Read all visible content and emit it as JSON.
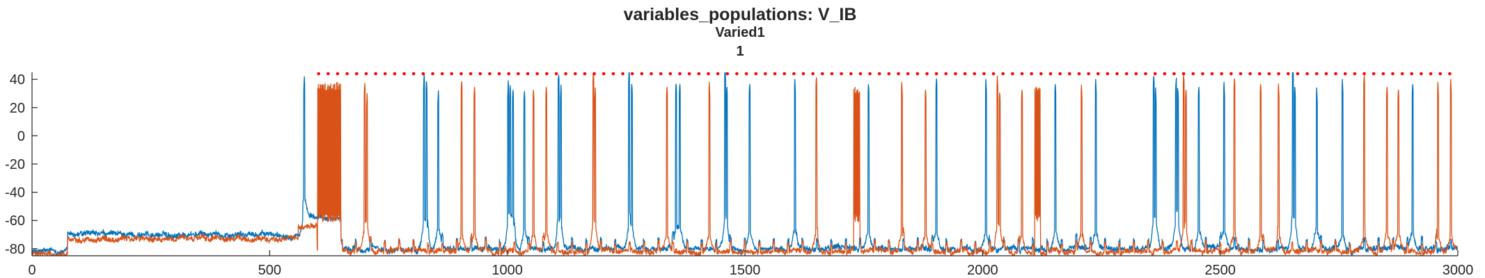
{
  "chart_data": {
    "type": "line",
    "title": "variables_populations: V_IB",
    "subtitle_lines": [
      "Varied1",
      "1"
    ],
    "xlabel": "",
    "ylabel": "",
    "xlim": [
      0,
      3000
    ],
    "ylim": [
      -85,
      45
    ],
    "xticks": [
      0,
      500,
      1000,
      1500,
      2000,
      2500,
      3000
    ],
    "xtick_labels": [
      "0",
      "500",
      "1000",
      "1500",
      "2000",
      "2500",
      "3000"
    ],
    "yticks": [
      40,
      20,
      0,
      -20,
      -40,
      -60,
      -80
    ],
    "ytick_labels": [
      "40",
      "20",
      "0",
      "-20",
      "-40",
      "-60",
      "-80"
    ],
    "grid": false,
    "legend": "none",
    "series": [
      {
        "color": "#0072BD",
        "baseline_segments": [
          {
            "x_start": 0,
            "x_end": 75,
            "v": -82
          },
          {
            "x_start": 75,
            "x_end": 570,
            "v": -70
          },
          {
            "x_start": 570,
            "x_end": 650,
            "v": -58
          },
          {
            "x_start": 650,
            "x_end": 3000,
            "v": -80
          }
        ],
        "spikes": [
          {
            "x": 573,
            "peak": 42
          },
          {
            "x": 825,
            "peak": 38
          },
          {
            "x": 830,
            "peak": 40
          },
          {
            "x": 855,
            "peak": 32
          },
          {
            "x": 1002,
            "peak": 30
          },
          {
            "x": 1006,
            "peak": 32
          },
          {
            "x": 1012,
            "peak": 34
          },
          {
            "x": 1036,
            "peak": 33
          },
          {
            "x": 1108,
            "peak": 38
          },
          {
            "x": 1113,
            "peak": 36
          },
          {
            "x": 1256,
            "peak": 40
          },
          {
            "x": 1262,
            "peak": 38
          },
          {
            "x": 1355,
            "peak": 36
          },
          {
            "x": 1363,
            "peak": 38
          },
          {
            "x": 1458,
            "peak": 40
          },
          {
            "x": 1462,
            "peak": 36
          },
          {
            "x": 1510,
            "peak": 38
          },
          {
            "x": 1605,
            "peak": 40
          },
          {
            "x": 1760,
            "peak": 38
          },
          {
            "x": 1903,
            "peak": 42
          },
          {
            "x": 2007,
            "peak": 40
          },
          {
            "x": 2153,
            "peak": 38
          },
          {
            "x": 2238,
            "peak": 40
          },
          {
            "x": 2360,
            "peak": 36
          },
          {
            "x": 2364,
            "peak": 34
          },
          {
            "x": 2407,
            "peak": 32
          },
          {
            "x": 2411,
            "peak": 34
          },
          {
            "x": 2455,
            "peak": 36
          },
          {
            "x": 2508,
            "peak": 38
          },
          {
            "x": 2653,
            "peak": 40
          },
          {
            "x": 2657,
            "peak": 36
          },
          {
            "x": 2703,
            "peak": 34
          },
          {
            "x": 2757,
            "peak": 40
          },
          {
            "x": 2905,
            "peak": 38
          }
        ]
      },
      {
        "color": "#D95319",
        "baseline_segments": [
          {
            "x_start": 0,
            "x_end": 75,
            "v": -84
          },
          {
            "x_start": 75,
            "x_end": 560,
            "v": -73
          },
          {
            "x_start": 560,
            "x_end": 600,
            "v": -65
          },
          {
            "x_start": 600,
            "x_end": 3000,
            "v": -82
          }
        ],
        "bursts": [
          {
            "x_start": 601,
            "x_end": 650,
            "peak": 38,
            "trough": -55
          },
          {
            "x_start": 1729,
            "x_end": 1742,
            "peak": 35,
            "trough": -55
          },
          {
            "x_start": 2110,
            "x_end": 2122,
            "peak": 36,
            "trough": -55
          }
        ],
        "spikes": [
          {
            "x": 700,
            "peak": 32
          },
          {
            "x": 705,
            "peak": 30
          },
          {
            "x": 904,
            "peak": 40
          },
          {
            "x": 931,
            "peak": 36
          },
          {
            "x": 1055,
            "peak": 34
          },
          {
            "x": 1082,
            "peak": 36
          },
          {
            "x": 1181,
            "peak": 38
          },
          {
            "x": 1185,
            "peak": 34
          },
          {
            "x": 1336,
            "peak": 36
          },
          {
            "x": 1425,
            "peak": 38
          },
          {
            "x": 1650,
            "peak": 40
          },
          {
            "x": 1830,
            "peak": 38
          },
          {
            "x": 1880,
            "peak": 34
          },
          {
            "x": 2031,
            "peak": 36
          },
          {
            "x": 2036,
            "peak": 32
          },
          {
            "x": 2083,
            "peak": 34
          },
          {
            "x": 2208,
            "peak": 36
          },
          {
            "x": 2423,
            "peak": 38
          },
          {
            "x": 2428,
            "peak": 34
          },
          {
            "x": 2530,
            "peak": 36
          },
          {
            "x": 2585,
            "peak": 38
          },
          {
            "x": 2623,
            "peak": 34
          },
          {
            "x": 2803,
            "peak": 38
          },
          {
            "x": 2851,
            "peak": 36
          },
          {
            "x": 2875,
            "peak": 34
          },
          {
            "x": 2958,
            "peak": 38
          },
          {
            "x": 2985,
            "peak": 34
          }
        ]
      }
    ],
    "markers": {
      "color": "#FF0000",
      "y": 44,
      "x_start": 603,
      "x_end": 2993,
      "step": 20
    }
  }
}
